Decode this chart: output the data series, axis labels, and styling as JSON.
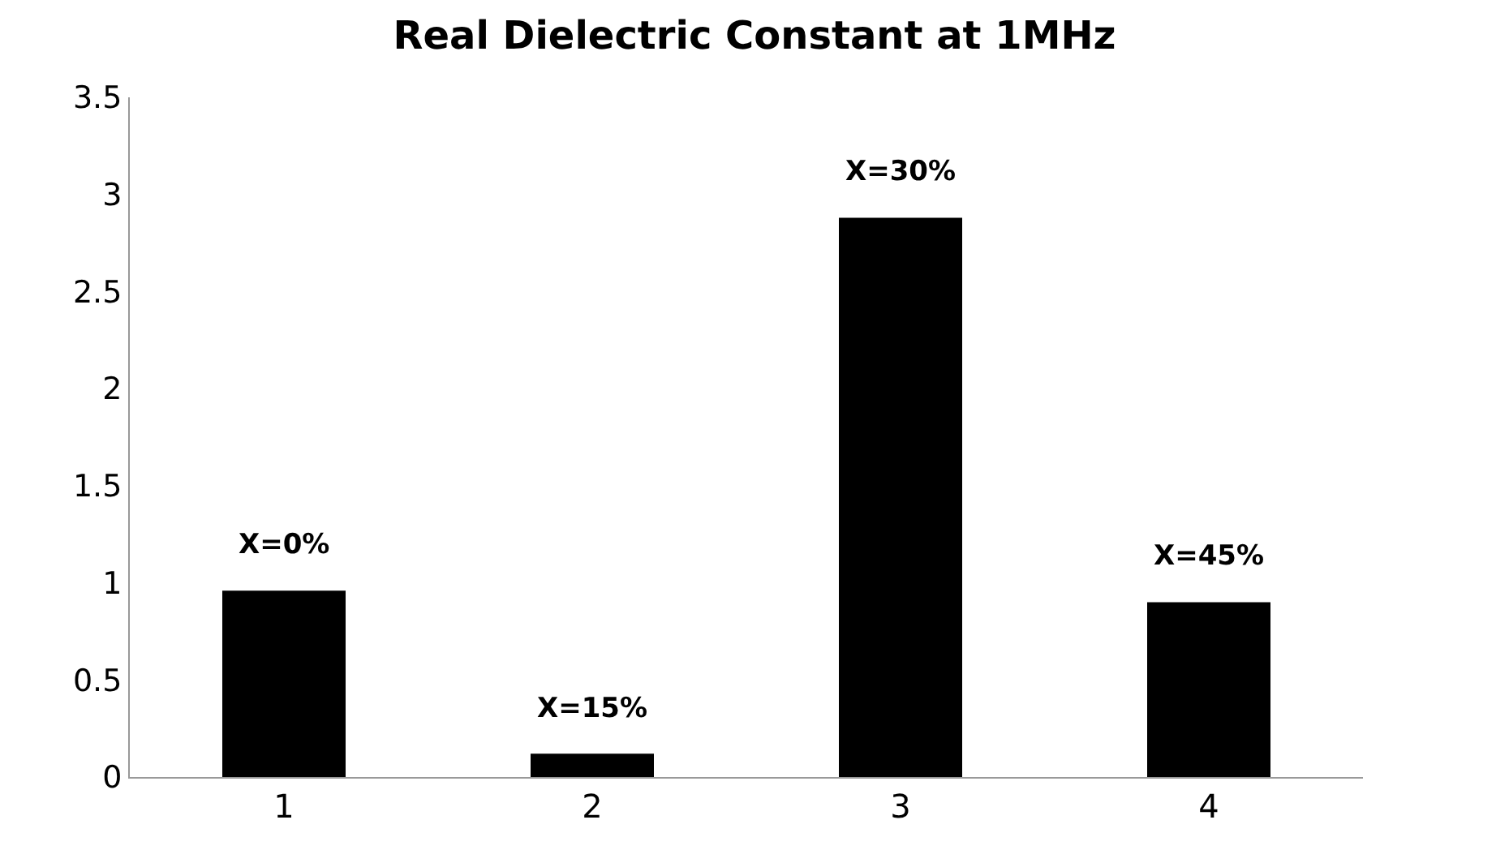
{
  "chart_data": {
    "type": "bar",
    "title": "Real Dielectric Constant at 1MHz",
    "categories": [
      "1",
      "2",
      "3",
      "4"
    ],
    "values": [
      0.96,
      0.12,
      2.88,
      0.9
    ],
    "color": "#000000",
    "ylim": [
      0,
      3.5
    ],
    "yticks": [
      0,
      0.5,
      1,
      1.5,
      2,
      2.5,
      3,
      3.5
    ],
    "annotations": [
      {
        "text": "X=0%",
        "x": "1",
        "y": 0.96
      },
      {
        "text": "X=15%",
        "x": "2",
        "y": 0.12
      },
      {
        "text": "X=30%",
        "x": "3",
        "y": 2.88
      },
      {
        "text": "X=45%",
        "x": "4",
        "y": 0.9
      }
    ]
  }
}
